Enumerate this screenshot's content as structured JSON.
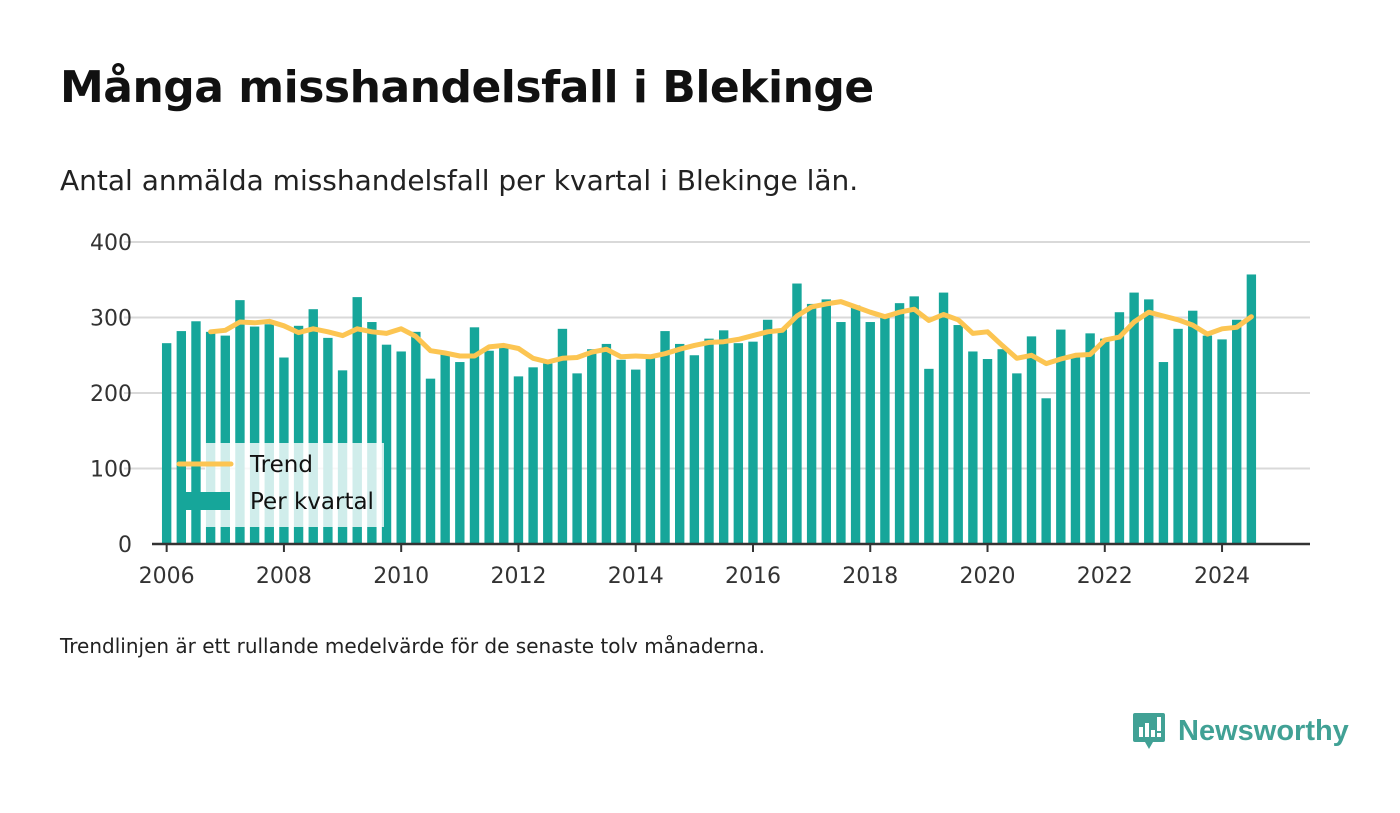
{
  "header": {
    "title": "Många misshandelsfall i Blekinge",
    "subtitle": "Antal anmälda misshandelsfall per kvartal i Blekinge län."
  },
  "footer": {
    "note": "Trendlinjen är ett rullande medelvärde för de senaste tolv månaderna.",
    "brand_name": "Newsworthy",
    "brand_icon": "chart-speech-bubble-icon"
  },
  "colors": {
    "bars": "#16a69a",
    "trend": "#fcc552",
    "brand": "#41a195",
    "grid": "#d9d9d9",
    "axis": "#333333"
  },
  "chart_data": {
    "type": "bar",
    "title": "Många misshandelsfall i Blekinge",
    "ylim": [
      0,
      400
    ],
    "yticks": [
      0,
      100,
      200,
      300,
      400
    ],
    "xlim": [
      2005.75,
      2025.5
    ],
    "xticks": [
      2006,
      2008,
      2010,
      2012,
      2014,
      2016,
      2018,
      2020,
      2022,
      2024
    ],
    "grid": true,
    "legend": "bottom-left",
    "legend_entries": [
      "Trend",
      "Per kvartal"
    ],
    "series": [
      {
        "name": "Per kvartal",
        "type": "bar",
        "x_start": 2006.0,
        "x_step": 0.25,
        "values": [
          266,
          282,
          295,
          281,
          276,
          323,
          288,
          291,
          247,
          289,
          311,
          273,
          230,
          327,
          294,
          264,
          255,
          281,
          219,
          251,
          241,
          287,
          256,
          262,
          222,
          234,
          239,
          285,
          226,
          258,
          265,
          244,
          231,
          251,
          282,
          265,
          250,
          272,
          283,
          266,
          268,
          297,
          285,
          345,
          318,
          324,
          294,
          316,
          294,
          302,
          319,
          328,
          232,
          333,
          290,
          255,
          245,
          258,
          226,
          275,
          193,
          284,
          250,
          279,
          272,
          307,
          333,
          324,
          241,
          285,
          309,
          276,
          271,
          297,
          357
        ]
      },
      {
        "name": "Trend",
        "type": "line",
        "x_start": 2006.75,
        "x_step": 0.25,
        "values": [
          281,
          283,
          294,
          293,
          295,
          289,
          280,
          285,
          281,
          276,
          285,
          281,
          279,
          285,
          275,
          256,
          253,
          249,
          249,
          261,
          263,
          259,
          246,
          241,
          246,
          247,
          254,
          258,
          248,
          249,
          248,
          252,
          258,
          263,
          267,
          268,
          271,
          276,
          281,
          283,
          302,
          314,
          318,
          321,
          314,
          307,
          301,
          307,
          311,
          296,
          304,
          297,
          279,
          281,
          263,
          246,
          250,
          239,
          245,
          250,
          251,
          270,
          274,
          294,
          307,
          302,
          297,
          290,
          278,
          285,
          287,
          301
        ]
      }
    ]
  }
}
